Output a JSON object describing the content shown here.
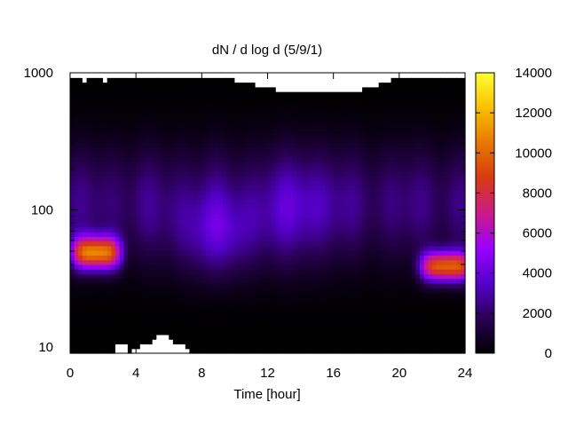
{
  "chart_data": {
    "type": "heatmap",
    "title": "dN / d log d (5/9/1)",
    "xlabel": "Time [hour]",
    "ylabel": "",
    "x_ticks": [
      "0",
      "4",
      "8",
      "12",
      "16",
      "20",
      "24"
    ],
    "x_tick_values": [
      0,
      4,
      8,
      12,
      16,
      20,
      24
    ],
    "xlim": [
      0,
      24
    ],
    "y_scale": "log",
    "y_ticks": [
      "10",
      "100",
      "1000"
    ],
    "y_tick_values": [
      10,
      100,
      1000
    ],
    "ylim": [
      9,
      1000
    ],
    "colorbar": {
      "ticks": [
        "0",
        "2000",
        "4000",
        "6000",
        "8000",
        "10000",
        "12000",
        "14000"
      ],
      "tick_values": [
        0,
        2000,
        4000,
        6000,
        8000,
        10000,
        12000,
        14000
      ],
      "range": [
        0,
        14000
      ],
      "colormap": [
        "#000000",
        "#2a0055",
        "#5500cc",
        "#9b00ff",
        "#cc1a88",
        "#d83a10",
        "#e87800",
        "#f8c000",
        "#ffff33"
      ]
    },
    "features": [
      {
        "x_range": [
          0,
          3.5
        ],
        "y_range": [
          35,
          70
        ],
        "approx_peak": 10500
      },
      {
        "x_range": [
          21,
          24
        ],
        "y_range": [
          27,
          58
        ],
        "approx_peak": 9500
      }
    ]
  }
}
